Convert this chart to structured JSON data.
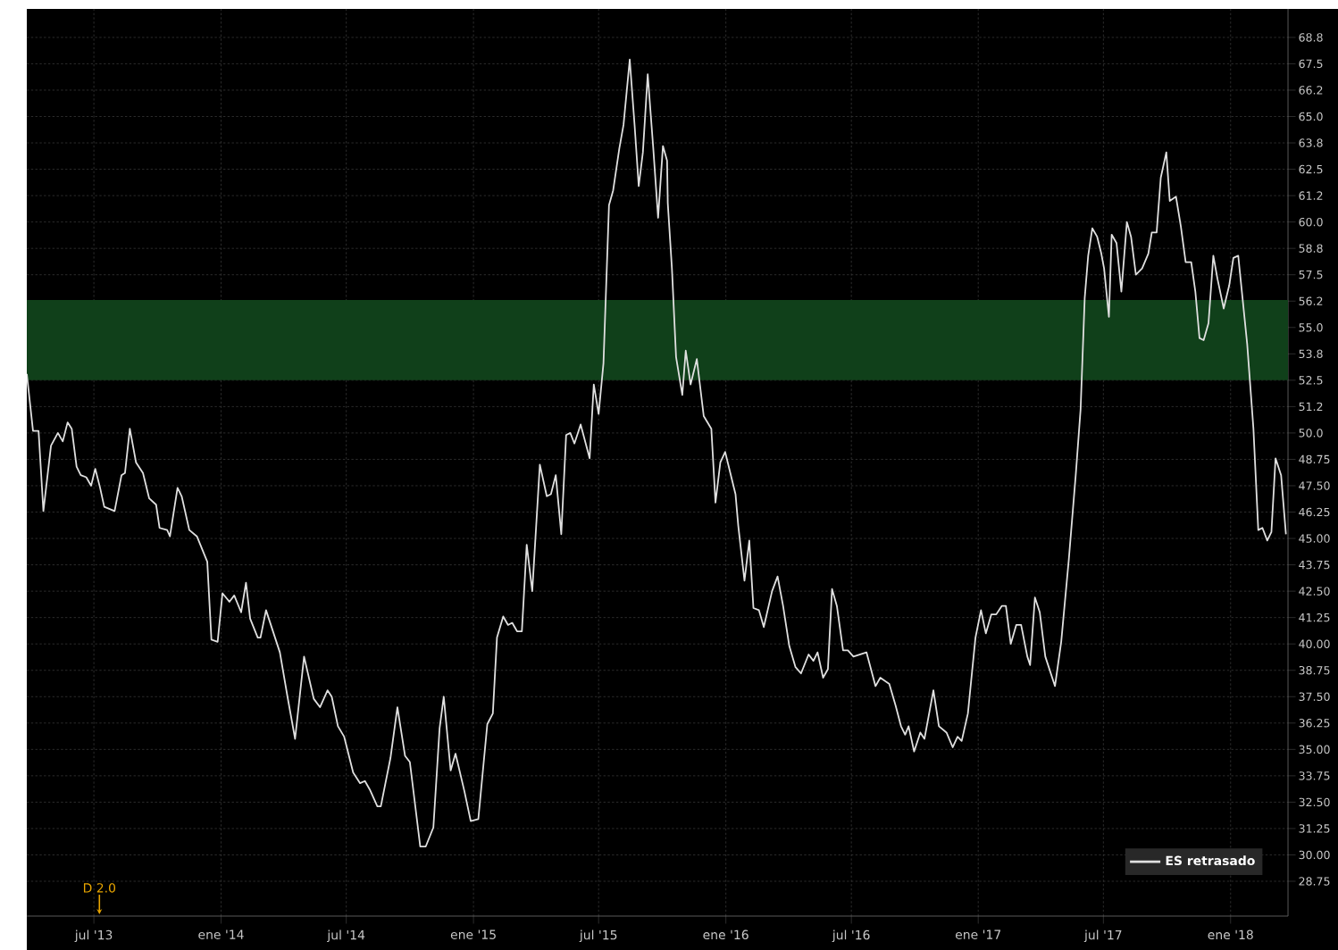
{
  "chart_data": {
    "type": "line",
    "x": [
      "2013-03-26",
      "2013-04-04",
      "2013-04-12",
      "2013-04-19",
      "2013-04-30",
      "2013-05-10",
      "2013-05-17",
      "2013-05-24",
      "2013-05-30",
      "2013-06-06",
      "2013-06-12",
      "2013-06-20",
      "2013-06-27",
      "2013-07-03",
      "2013-07-10",
      "2013-07-16",
      "2013-07-31",
      "2013-08-10",
      "2013-08-15",
      "2013-08-22",
      "2013-08-31",
      "2013-09-10",
      "2013-09-19",
      "2013-09-29",
      "2013-10-04",
      "2013-10-15",
      "2013-10-19",
      "2013-10-30",
      "2013-11-05",
      "2013-11-16",
      "2013-11-27",
      "2013-12-12",
      "2013-12-18",
      "2013-12-27",
      "2014-01-03",
      "2014-01-13",
      "2014-01-20",
      "2014-01-30",
      "2014-02-06",
      "2014-02-12",
      "2014-02-23",
      "2014-02-27",
      "2014-03-07",
      "2014-03-20",
      "2014-03-27",
      "2014-04-07",
      "2014-04-18",
      "2014-05-01",
      "2014-05-15",
      "2014-05-24",
      "2014-06-04",
      "2014-06-10",
      "2014-06-19",
      "2014-06-28",
      "2014-07-11",
      "2014-07-21",
      "2014-07-28",
      "2014-08-04",
      "2014-08-15",
      "2014-08-20",
      "2014-09-03",
      "2014-09-13",
      "2014-09-24",
      "2014-10-01",
      "2014-10-16",
      "2014-10-24",
      "2014-11-04",
      "2014-11-13",
      "2014-11-19",
      "2014-11-29",
      "2014-12-06",
      "2014-12-19",
      "2014-12-28",
      "2015-01-08",
      "2015-01-21",
      "2015-01-29",
      "2015-02-04",
      "2015-02-13",
      "2015-02-20",
      "2015-02-26",
      "2015-03-05",
      "2015-03-12",
      "2015-03-19",
      "2015-03-27",
      "2015-04-07",
      "2015-04-17",
      "2015-04-23",
      "2015-04-30",
      "2015-05-08",
      "2015-05-15",
      "2015-05-21",
      "2015-05-27",
      "2015-06-05",
      "2015-06-18",
      "2015-06-24",
      "2015-07-01",
      "2015-07-08",
      "2015-07-16",
      "2015-07-22",
      "2015-07-31",
      "2015-08-06",
      "2015-08-15",
      "2015-08-22",
      "2015-08-28",
      "2015-09-03",
      "2015-09-10",
      "2015-09-18",
      "2015-09-25",
      "2015-10-02",
      "2015-10-08",
      "2015-10-09",
      "2015-10-15",
      "2015-10-21",
      "2015-10-30",
      "2015-11-04",
      "2015-11-11",
      "2015-11-20",
      "2015-11-30",
      "2015-12-11",
      "2015-12-17",
      "2015-12-24",
      "2015-12-31",
      "2016-01-15",
      "2016-01-19",
      "2016-01-28",
      "2016-02-04",
      "2016-02-10",
      "2016-02-18",
      "2016-02-25",
      "2016-03-08",
      "2016-03-16",
      "2016-03-24",
      "2016-04-02",
      "2016-04-11",
      "2016-04-19",
      "2016-04-30",
      "2016-05-07",
      "2016-05-13",
      "2016-05-21",
      "2016-05-28",
      "2016-06-03",
      "2016-06-10",
      "2016-06-19",
      "2016-06-26",
      "2016-07-04",
      "2016-07-23",
      "2016-08-05",
      "2016-08-12",
      "2016-08-25",
      "2016-09-03",
      "2016-09-11",
      "2016-09-17",
      "2016-09-22",
      "2016-09-30",
      "2016-10-09",
      "2016-10-15",
      "2016-10-28",
      "2016-11-05",
      "2016-11-16",
      "2016-11-25",
      "2016-12-02",
      "2016-12-08",
      "2016-12-17",
      "2016-12-28",
      "2017-01-05",
      "2017-01-12",
      "2017-01-20",
      "2017-01-27",
      "2017-02-04",
      "2017-02-10",
      "2017-02-17",
      "2017-02-25",
      "2017-03-04",
      "2017-03-13",
      "2017-03-17",
      "2017-03-24",
      "2017-03-31",
      "2017-04-08",
      "2017-04-22",
      "2017-05-01",
      "2017-05-12",
      "2017-05-22",
      "2017-05-29",
      "2017-06-04",
      "2017-06-09",
      "2017-06-15",
      "2017-06-22",
      "2017-06-28",
      "2017-07-02",
      "2017-07-09",
      "2017-07-13",
      "2017-07-20",
      "2017-07-27",
      "2017-08-04",
      "2017-08-10",
      "2017-08-17",
      "2017-08-26",
      "2017-09-04",
      "2017-09-09",
      "2017-09-16",
      "2017-09-22",
      "2017-09-30",
      "2017-10-05",
      "2017-10-14",
      "2017-10-21",
      "2017-10-28",
      "2017-11-05",
      "2017-11-11",
      "2017-11-17",
      "2017-11-23",
      "2017-11-30",
      "2017-12-07",
      "2017-12-13",
      "2017-12-22",
      "2017-12-30",
      "2018-01-05",
      "2018-01-12",
      "2018-01-25",
      "2018-02-03",
      "2018-02-10",
      "2018-02-16",
      "2018-02-23",
      "2018-03-01",
      "2018-03-07",
      "2018-03-15",
      "2018-03-22"
    ],
    "series": [
      {
        "name": "ES retrasado",
        "color": "#e0e0e0",
        "values": [
          52.8,
          50.1,
          50.1,
          46.3,
          49.4,
          50.0,
          49.6,
          50.5,
          50.2,
          48.4,
          48.0,
          47.9,
          47.5,
          48.3,
          47.4,
          46.5,
          46.3,
          48.0,
          48.1,
          50.2,
          48.6,
          48.1,
          46.9,
          46.6,
          45.5,
          45.4,
          45.1,
          47.4,
          47.0,
          45.4,
          45.1,
          43.9,
          40.2,
          40.1,
          42.4,
          42.0,
          42.3,
          41.5,
          42.9,
          41.2,
          40.3,
          40.3,
          41.6,
          40.3,
          39.6,
          37.5,
          35.5,
          39.4,
          37.4,
          37.0,
          37.8,
          37.5,
          36.1,
          35.6,
          33.9,
          33.4,
          33.5,
          33.1,
          32.3,
          32.3,
          34.6,
          37.0,
          34.7,
          34.4,
          30.4,
          30.4,
          31.3,
          36.0,
          37.5,
          34.0,
          34.8,
          33.0,
          31.6,
          31.7,
          36.2,
          36.7,
          40.3,
          41.3,
          40.9,
          41.0,
          40.6,
          40.6,
          44.7,
          42.5,
          48.5,
          47.0,
          47.1,
          48.0,
          45.2,
          49.9,
          50.0,
          49.5,
          50.4,
          48.8,
          52.3,
          50.9,
          53.3,
          60.8,
          61.5,
          63.5,
          64.6,
          67.7,
          64.6,
          61.7,
          63.3,
          67.0,
          63.5,
          60.2,
          63.6,
          62.9,
          60.9,
          57.8,
          53.6,
          51.8,
          53.9,
          52.3,
          53.5,
          50.8,
          50.2,
          46.7,
          48.6,
          49.1,
          47.1,
          45.6,
          43.0,
          44.9,
          41.7,
          41.6,
          40.8,
          42.5,
          43.2,
          41.8,
          39.9,
          38.9,
          38.6,
          39.5,
          39.2,
          39.6,
          38.4,
          38.8,
          42.6,
          41.8,
          39.7,
          39.7,
          39.4,
          39.6,
          38.0,
          38.4,
          38.1,
          37.1,
          36.1,
          35.7,
          36.1,
          34.9,
          35.8,
          35.5,
          37.8,
          36.1,
          35.8,
          35.1,
          35.6,
          35.4,
          36.7,
          40.3,
          41.6,
          40.5,
          41.4,
          41.4,
          41.8,
          41.8,
          40.0,
          40.9,
          40.9,
          39.4,
          39.0,
          42.2,
          41.5,
          39.4,
          38.0,
          40.1,
          44.0,
          48.0,
          51.1,
          56.4,
          58.4,
          59.7,
          59.3,
          58.5,
          57.8,
          55.5,
          59.4,
          59.0,
          56.7,
          60.0,
          59.3,
          57.5,
          57.8,
          58.5,
          59.5,
          59.5,
          62.1,
          63.3,
          61.0,
          61.2,
          59.8,
          58.1,
          58.1,
          56.7,
          54.5,
          54.4,
          55.2,
          58.4,
          57.3,
          55.9,
          57.0,
          58.3,
          58.4,
          54.2,
          50.2,
          45.4,
          45.5,
          44.9,
          45.3,
          48.8,
          48.0,
          45.2
        ]
      }
    ],
    "xlim": [
      "2013-03-26",
      "2018-03-25"
    ],
    "xticks": [
      {
        "value": "2013-07-01",
        "label": "jul '13"
      },
      {
        "value": "2014-01-01",
        "label": "ene '14"
      },
      {
        "value": "2014-07-01",
        "label": "jul '14"
      },
      {
        "value": "2015-01-01",
        "label": "ene '15"
      },
      {
        "value": "2015-07-01",
        "label": "jul '15"
      },
      {
        "value": "2016-01-01",
        "label": "ene '16"
      },
      {
        "value": "2016-07-01",
        "label": "jul '16"
      },
      {
        "value": "2017-01-01",
        "label": "ene '17"
      },
      {
        "value": "2017-07-01",
        "label": "jul '17"
      },
      {
        "value": "2018-01-01",
        "label": "ene '18"
      }
    ],
    "ylim": [
      27.1,
      70.1
    ],
    "yticks": [
      {
        "value": 28.75,
        "label": "28.75"
      },
      {
        "value": 30,
        "label": "30.00"
      },
      {
        "value": 31.25,
        "label": "31.25"
      },
      {
        "value": 32.5,
        "label": "32.50"
      },
      {
        "value": 33.75,
        "label": "33.75"
      },
      {
        "value": 35,
        "label": "35.00"
      },
      {
        "value": 36.25,
        "label": "36.25"
      },
      {
        "value": 37.5,
        "label": "37.50"
      },
      {
        "value": 38.75,
        "label": "38.75"
      },
      {
        "value": 40,
        "label": "40.00"
      },
      {
        "value": 41.25,
        "label": "41.25"
      },
      {
        "value": 42.5,
        "label": "42.50"
      },
      {
        "value": 43.75,
        "label": "43.75"
      },
      {
        "value": 45,
        "label": "45.00"
      },
      {
        "value": 46.25,
        "label": "46.25"
      },
      {
        "value": 47.5,
        "label": "47.50"
      },
      {
        "value": 48.75,
        "label": "48.75"
      },
      {
        "value": 50,
        "label": "50.0"
      },
      {
        "value": 51.25,
        "label": "51.2"
      },
      52.5,
      {
        "value": 53.75,
        "label": "53.8"
      },
      {
        "value": 55,
        "label": "55.0"
      },
      {
        "value": 56.25,
        "label": "56.2"
      },
      57.5,
      {
        "value": 58.75,
        "label": "58.8"
      },
      {
        "value": 60,
        "label": "60.0"
      },
      {
        "value": 61.25,
        "label": "61.2"
      },
      62.5,
      {
        "value": 63.75,
        "label": "63.8"
      },
      {
        "value": 65,
        "label": "65.0"
      },
      {
        "value": 66.25,
        "label": "66.2"
      },
      67.5,
      {
        "value": 68.75,
        "label": "68.8"
      }
    ],
    "bands": [
      {
        "axis": "y",
        "from": 52.5,
        "to": 56.3,
        "color": "#10401a"
      }
    ],
    "annotations": [
      {
        "text": "D 2.0",
        "x": "2013-07-09"
      }
    ],
    "grid": true,
    "legend": "bottom right",
    "marker": "none",
    "line_style": "solid"
  }
}
